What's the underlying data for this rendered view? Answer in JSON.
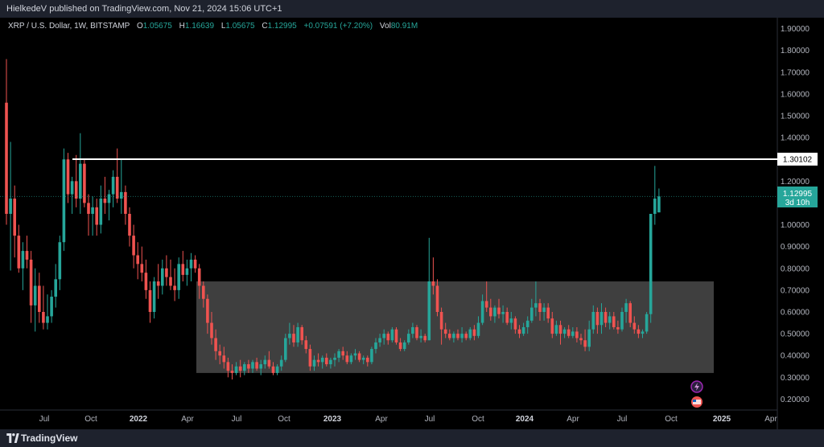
{
  "header": {
    "published_text": "HielkedeV published on TradingView.com, Nov 21, 2024 15:06 UTC+1"
  },
  "legend": {
    "symbol": "XRP / U.S. Dollar, 1W, BITSTAMP",
    "open_label": "O",
    "open_value": "1.05675",
    "high_label": "H",
    "high_value": "1.16639",
    "low_label": "L",
    "low_value": "1.05675",
    "close_label": "C",
    "close_value": "1.12995",
    "change_value": "+0.07591 (+7.20%)",
    "vol_label": "Vol",
    "vol_value": "80.91M"
  },
  "price_scale": {
    "labels": [
      "1.90000",
      "1.80000",
      "1.70000",
      "1.60000",
      "1.50000",
      "1.40000",
      "1.30000",
      "1.20000",
      "1.10000",
      "1.00000",
      "0.90000",
      "0.80000",
      "0.70000",
      "0.60000",
      "0.50000",
      "0.40000",
      "0.30000",
      "0.20000"
    ],
    "line_label": "1.30102",
    "last_price_label": "1.12995",
    "countdown_label": "3d 10h"
  },
  "time_scale": {
    "labels": [
      "Jul",
      "Oct",
      "2022",
      "Apr",
      "Jul",
      "Oct",
      "2023",
      "Apr",
      "Jul",
      "Oct",
      "2024",
      "Apr",
      "Jul",
      "Oct",
      "2025",
      "Apr"
    ]
  },
  "footer": {
    "brand": "TradingView"
  },
  "colors": {
    "up": "#26a69a",
    "down": "#ef5350",
    "box": "#4a4a4a",
    "line": "#ffffff",
    "background": "#000000",
    "panel": "#1e222d"
  },
  "chart_data": {
    "type": "candlestick",
    "y_axis_range": [
      0.15,
      1.95
    ],
    "horizontal_line": 1.30102,
    "range_box": {
      "top": 0.74,
      "bottom": 0.32,
      "from": "Apr 2022",
      "to": "Nov 2024"
    },
    "series": [
      [
        1.56,
        1.76,
        1.0,
        1.05
      ],
      [
        1.05,
        1.38,
        0.79,
        1.12
      ],
      [
        1.12,
        1.18,
        0.85,
        0.95
      ],
      [
        0.95,
        1.0,
        0.78,
        0.8
      ],
      [
        0.8,
        0.92,
        0.7,
        0.88
      ],
      [
        0.88,
        0.95,
        0.8,
        0.84
      ],
      [
        0.84,
        0.88,
        0.55,
        0.63
      ],
      [
        0.63,
        0.8,
        0.51,
        0.72
      ],
      [
        0.72,
        0.78,
        0.55,
        0.6
      ],
      [
        0.6,
        0.72,
        0.52,
        0.55
      ],
      [
        0.55,
        0.68,
        0.52,
        0.58
      ],
      [
        0.58,
        0.7,
        0.55,
        0.67
      ],
      [
        0.67,
        0.82,
        0.62,
        0.75
      ],
      [
        0.75,
        0.95,
        0.7,
        0.92
      ],
      [
        0.92,
        1.35,
        0.88,
        1.3
      ],
      [
        1.3,
        1.33,
        1.1,
        1.14
      ],
      [
        1.14,
        1.22,
        1.05,
        1.2
      ],
      [
        1.2,
        1.32,
        1.08,
        1.12
      ],
      [
        1.12,
        1.42,
        1.05,
        1.28
      ],
      [
        1.28,
        1.3,
        1.08,
        1.1
      ],
      [
        1.1,
        1.14,
        0.95,
        1.05
      ],
      [
        1.05,
        1.13,
        0.95,
        1.08
      ],
      [
        1.08,
        1.12,
        0.95,
        1.0
      ],
      [
        1.0,
        1.18,
        0.96,
        1.12
      ],
      [
        1.12,
        1.22,
        1.05,
        1.1
      ],
      [
        1.1,
        1.16,
        1.02,
        1.14
      ],
      [
        1.14,
        1.25,
        1.08,
        1.22
      ],
      [
        1.22,
        1.35,
        1.1,
        1.12
      ],
      [
        1.12,
        1.3,
        1.05,
        1.15
      ],
      [
        1.15,
        1.18,
        1.0,
        1.05
      ],
      [
        1.05,
        1.08,
        0.9,
        0.95
      ],
      [
        0.95,
        1.0,
        0.8,
        0.86
      ],
      [
        0.86,
        0.92,
        0.75,
        0.82
      ],
      [
        0.82,
        0.9,
        0.74,
        0.78
      ],
      [
        0.78,
        0.84,
        0.66,
        0.7
      ],
      [
        0.7,
        0.74,
        0.55,
        0.6
      ],
      [
        0.6,
        0.76,
        0.57,
        0.74
      ],
      [
        0.74,
        0.82,
        0.66,
        0.72
      ],
      [
        0.72,
        0.84,
        0.68,
        0.8
      ],
      [
        0.8,
        0.86,
        0.72,
        0.76
      ],
      [
        0.76,
        0.84,
        0.7,
        0.72
      ],
      [
        0.72,
        0.8,
        0.65,
        0.7
      ],
      [
        0.7,
        0.85,
        0.66,
        0.82
      ],
      [
        0.82,
        0.88,
        0.74,
        0.77
      ],
      [
        0.77,
        0.84,
        0.72,
        0.8
      ],
      [
        0.8,
        0.87,
        0.74,
        0.84
      ],
      [
        0.84,
        0.86,
        0.78,
        0.8
      ],
      [
        0.8,
        0.82,
        0.66,
        0.72
      ],
      [
        0.72,
        0.74,
        0.62,
        0.66
      ],
      [
        0.66,
        0.68,
        0.5,
        0.55
      ],
      [
        0.55,
        0.6,
        0.45,
        0.48
      ],
      [
        0.48,
        0.52,
        0.38,
        0.42
      ],
      [
        0.42,
        0.45,
        0.36,
        0.4
      ],
      [
        0.4,
        0.44,
        0.34,
        0.37
      ],
      [
        0.37,
        0.39,
        0.3,
        0.33
      ],
      [
        0.33,
        0.36,
        0.29,
        0.32
      ],
      [
        0.32,
        0.37,
        0.31,
        0.35
      ],
      [
        0.35,
        0.38,
        0.3,
        0.33
      ],
      [
        0.33,
        0.37,
        0.31,
        0.36
      ],
      [
        0.36,
        0.38,
        0.32,
        0.34
      ],
      [
        0.34,
        0.38,
        0.32,
        0.37
      ],
      [
        0.37,
        0.39,
        0.33,
        0.34
      ],
      [
        0.34,
        0.38,
        0.31,
        0.36
      ],
      [
        0.36,
        0.4,
        0.34,
        0.38
      ],
      [
        0.38,
        0.42,
        0.34,
        0.35
      ],
      [
        0.35,
        0.37,
        0.31,
        0.32
      ],
      [
        0.32,
        0.36,
        0.31,
        0.35
      ],
      [
        0.35,
        0.4,
        0.33,
        0.38
      ],
      [
        0.38,
        0.5,
        0.37,
        0.48
      ],
      [
        0.48,
        0.55,
        0.45,
        0.5
      ],
      [
        0.5,
        0.54,
        0.44,
        0.46
      ],
      [
        0.46,
        0.55,
        0.44,
        0.53
      ],
      [
        0.53,
        0.54,
        0.45,
        0.47
      ],
      [
        0.47,
        0.49,
        0.41,
        0.43
      ],
      [
        0.43,
        0.45,
        0.33,
        0.35
      ],
      [
        0.35,
        0.4,
        0.33,
        0.38
      ],
      [
        0.38,
        0.41,
        0.35,
        0.37
      ],
      [
        0.37,
        0.4,
        0.34,
        0.39
      ],
      [
        0.39,
        0.41,
        0.35,
        0.36
      ],
      [
        0.36,
        0.39,
        0.34,
        0.38
      ],
      [
        0.38,
        0.41,
        0.35,
        0.39
      ],
      [
        0.39,
        0.43,
        0.37,
        0.42
      ],
      [
        0.42,
        0.44,
        0.38,
        0.4
      ],
      [
        0.4,
        0.42,
        0.36,
        0.37
      ],
      [
        0.37,
        0.41,
        0.36,
        0.4
      ],
      [
        0.4,
        0.43,
        0.38,
        0.41
      ],
      [
        0.41,
        0.42,
        0.37,
        0.38
      ],
      [
        0.38,
        0.4,
        0.36,
        0.39
      ],
      [
        0.39,
        0.4,
        0.35,
        0.37
      ],
      [
        0.37,
        0.44,
        0.36,
        0.43
      ],
      [
        0.43,
        0.48,
        0.41,
        0.46
      ],
      [
        0.46,
        0.5,
        0.44,
        0.48
      ],
      [
        0.48,
        0.52,
        0.45,
        0.5
      ],
      [
        0.5,
        0.51,
        0.45,
        0.47
      ],
      [
        0.47,
        0.53,
        0.46,
        0.52
      ],
      [
        0.52,
        0.53,
        0.45,
        0.46
      ],
      [
        0.46,
        0.48,
        0.42,
        0.43
      ],
      [
        0.43,
        0.47,
        0.42,
        0.46
      ],
      [
        0.46,
        0.52,
        0.45,
        0.5
      ],
      [
        0.5,
        0.55,
        0.48,
        0.53
      ],
      [
        0.53,
        0.54,
        0.47,
        0.48
      ],
      [
        0.48,
        0.52,
        0.46,
        0.49
      ],
      [
        0.49,
        0.5,
        0.46,
        0.47
      ],
      [
        0.47,
        0.94,
        0.47,
        0.74
      ],
      [
        0.74,
        0.85,
        0.68,
        0.72
      ],
      [
        0.72,
        0.75,
        0.58,
        0.6
      ],
      [
        0.6,
        0.62,
        0.45,
        0.52
      ],
      [
        0.52,
        0.55,
        0.48,
        0.5
      ],
      [
        0.5,
        0.52,
        0.47,
        0.48
      ],
      [
        0.48,
        0.51,
        0.46,
        0.5
      ],
      [
        0.5,
        0.52,
        0.47,
        0.48
      ],
      [
        0.48,
        0.53,
        0.46,
        0.5
      ],
      [
        0.5,
        0.51,
        0.47,
        0.48
      ],
      [
        0.48,
        0.53,
        0.47,
        0.52
      ],
      [
        0.52,
        0.54,
        0.47,
        0.49
      ],
      [
        0.49,
        0.58,
        0.48,
        0.55
      ],
      [
        0.55,
        0.68,
        0.54,
        0.65
      ],
      [
        0.65,
        0.74,
        0.6,
        0.62
      ],
      [
        0.62,
        0.66,
        0.56,
        0.58
      ],
      [
        0.58,
        0.63,
        0.55,
        0.62
      ],
      [
        0.62,
        0.66,
        0.57,
        0.59
      ],
      [
        0.59,
        0.63,
        0.55,
        0.6
      ],
      [
        0.6,
        0.62,
        0.54,
        0.55
      ],
      [
        0.55,
        0.6,
        0.52,
        0.57
      ],
      [
        0.57,
        0.58,
        0.5,
        0.52
      ],
      [
        0.52,
        0.54,
        0.48,
        0.5
      ],
      [
        0.5,
        0.55,
        0.49,
        0.53
      ],
      [
        0.53,
        0.58,
        0.5,
        0.56
      ],
      [
        0.56,
        0.66,
        0.55,
        0.62
      ],
      [
        0.62,
        0.74,
        0.58,
        0.64
      ],
      [
        0.64,
        0.66,
        0.56,
        0.6
      ],
      [
        0.6,
        0.64,
        0.56,
        0.62
      ],
      [
        0.62,
        0.64,
        0.55,
        0.57
      ],
      [
        0.57,
        0.6,
        0.48,
        0.5
      ],
      [
        0.5,
        0.56,
        0.49,
        0.54
      ],
      [
        0.54,
        0.56,
        0.45,
        0.5
      ],
      [
        0.5,
        0.53,
        0.48,
        0.52
      ],
      [
        0.52,
        0.54,
        0.48,
        0.49
      ],
      [
        0.49,
        0.53,
        0.48,
        0.51
      ],
      [
        0.51,
        0.53,
        0.46,
        0.48
      ],
      [
        0.48,
        0.5,
        0.45,
        0.47
      ],
      [
        0.47,
        0.52,
        0.42,
        0.44
      ],
      [
        0.44,
        0.56,
        0.42,
        0.52
      ],
      [
        0.52,
        0.63,
        0.5,
        0.6
      ],
      [
        0.6,
        0.62,
        0.5,
        0.54
      ],
      [
        0.54,
        0.64,
        0.5,
        0.6
      ],
      [
        0.6,
        0.62,
        0.53,
        0.55
      ],
      [
        0.55,
        0.6,
        0.52,
        0.58
      ],
      [
        0.58,
        0.6,
        0.52,
        0.53
      ],
      [
        0.53,
        0.56,
        0.5,
        0.52
      ],
      [
        0.52,
        0.62,
        0.51,
        0.6
      ],
      [
        0.6,
        0.66,
        0.55,
        0.64
      ],
      [
        0.64,
        0.65,
        0.53,
        0.55
      ],
      [
        0.55,
        0.58,
        0.5,
        0.52
      ],
      [
        0.52,
        0.54,
        0.48,
        0.5
      ],
      [
        0.5,
        0.52,
        0.48,
        0.51
      ],
      [
        0.51,
        0.6,
        0.5,
        0.59
      ],
      [
        0.59,
        0.74,
        0.55,
        1.05
      ],
      [
        1.05,
        1.27,
        1.0,
        1.12
      ],
      [
        1.05675,
        1.16639,
        1.05675,
        1.12995
      ]
    ]
  }
}
